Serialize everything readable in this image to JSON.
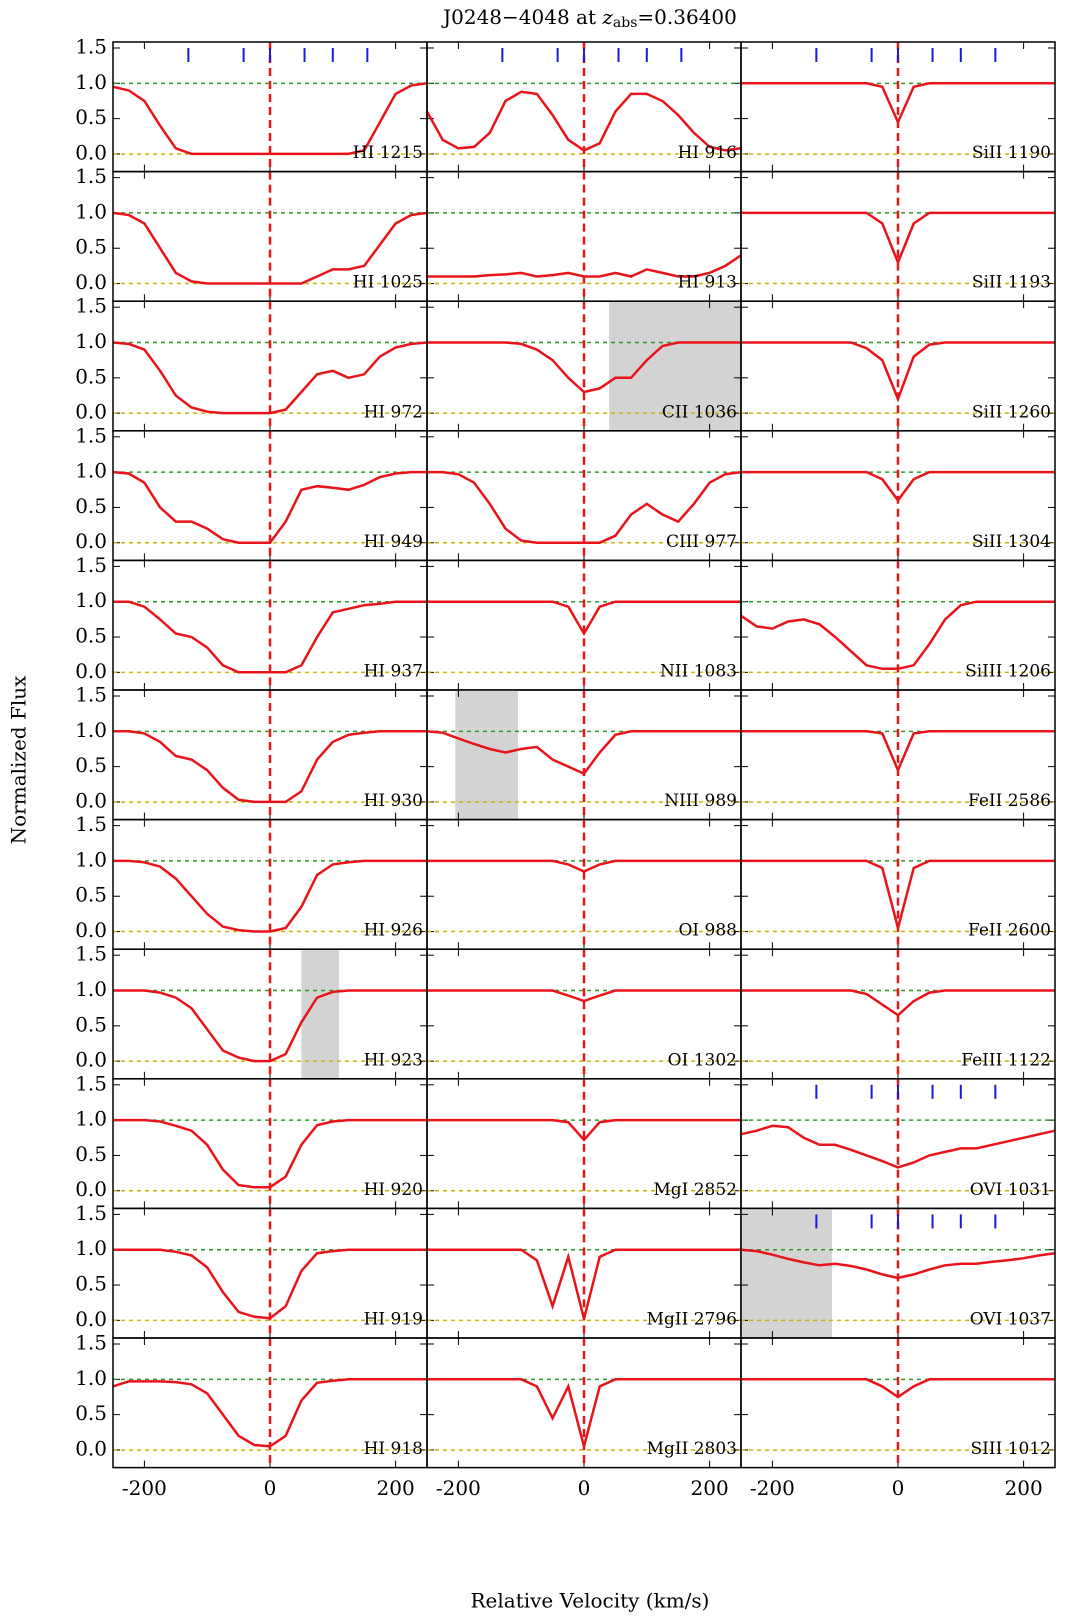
{
  "chart_data": {
    "type": "line",
    "title_prefix": "J0248−4048 at ",
    "title_var": "z",
    "title_sub": "abs",
    "title_value": "=0.36400",
    "xlabel": "Relative Velocity (km/s)",
    "ylabel": "Normalized Flux",
    "xlim": [
      -250,
      250
    ],
    "ylim": [
      -0.25,
      1.585
    ],
    "xticks": [
      -200,
      0,
      200
    ],
    "yticks": [
      {
        "value": 0,
        "label": "0.0"
      },
      {
        "value": 0.5,
        "label": "0.5"
      },
      {
        "value": 1,
        "label": "1.0"
      },
      {
        "value": 1.5,
        "label": "1.5"
      }
    ],
    "components": [
      -130,
      -42,
      0,
      55,
      100,
      155
    ],
    "model_color": "#e8141a",
    "x": [
      -250,
      -225,
      -200,
      -175,
      -150,
      -125,
      -100,
      -75,
      -50,
      -25,
      0,
      25,
      50,
      75,
      100,
      125,
      150,
      175,
      200,
      225,
      250
    ],
    "panels": [
      {
        "name": "HI 1215",
        "components": true,
        "values": [
          0.95,
          0.9,
          0.75,
          0.4,
          0.08,
          0,
          0,
          0,
          0,
          0,
          0,
          0,
          0,
          0,
          0,
          0,
          0.05,
          0.45,
          0.85,
          0.97,
          1
        ]
      },
      {
        "name": "HI 1025",
        "values": [
          1,
          0.97,
          0.85,
          0.5,
          0.15,
          0.03,
          0,
          0,
          0,
          0,
          0,
          0,
          0,
          0.1,
          0.2,
          0.2,
          0.25,
          0.55,
          0.85,
          0.97,
          1
        ]
      },
      {
        "name": "HI 972",
        "values": [
          1,
          0.98,
          0.9,
          0.6,
          0.25,
          0.08,
          0.02,
          0,
          0,
          0,
          0,
          0.05,
          0.3,
          0.55,
          0.6,
          0.5,
          0.55,
          0.8,
          0.93,
          0.98,
          1
        ]
      },
      {
        "name": "HI 949",
        "values": [
          1,
          0.98,
          0.85,
          0.5,
          0.3,
          0.3,
          0.2,
          0.05,
          0,
          0,
          0,
          0.3,
          0.75,
          0.8,
          0.78,
          0.75,
          0.82,
          0.93,
          0.98,
          1,
          1
        ]
      },
      {
        "name": "HI 937",
        "values": [
          1,
          1,
          0.93,
          0.75,
          0.55,
          0.5,
          0.35,
          0.1,
          0,
          0,
          0,
          0,
          0.1,
          0.5,
          0.85,
          0.9,
          0.95,
          0.97,
          1,
          1,
          1
        ]
      },
      {
        "name": "HI 930",
        "values": [
          1,
          1,
          0.97,
          0.85,
          0.65,
          0.6,
          0.45,
          0.2,
          0.03,
          0,
          0,
          0,
          0.15,
          0.6,
          0.85,
          0.95,
          0.98,
          1,
          1,
          1,
          1
        ]
      },
      {
        "name": "HI 926",
        "values": [
          1,
          1,
          0.98,
          0.92,
          0.75,
          0.5,
          0.25,
          0.07,
          0.02,
          0,
          0,
          0.05,
          0.35,
          0.8,
          0.95,
          0.98,
          1,
          1,
          1,
          1,
          1
        ]
      },
      {
        "name": "HI 923",
        "mask": [
          50,
          110
        ],
        "values": [
          1,
          1,
          1,
          0.97,
          0.9,
          0.75,
          0.45,
          0.15,
          0.05,
          0,
          0,
          0.1,
          0.55,
          0.9,
          0.98,
          1,
          1,
          1,
          1,
          1,
          1
        ]
      },
      {
        "name": "HI 920",
        "values": [
          1,
          1,
          1,
          0.98,
          0.92,
          0.85,
          0.65,
          0.3,
          0.08,
          0.05,
          0.05,
          0.2,
          0.65,
          0.93,
          0.98,
          1,
          1,
          1,
          1,
          1,
          1
        ]
      },
      {
        "name": "HI 919",
        "values": [
          1,
          1,
          1,
          1,
          0.97,
          0.92,
          0.75,
          0.4,
          0.12,
          0.05,
          0.03,
          0.2,
          0.7,
          0.95,
          0.98,
          1,
          1,
          1,
          1,
          1,
          1
        ]
      },
      {
        "name": "HI 918",
        "values": [
          0.9,
          0.97,
          0.97,
          0.97,
          0.96,
          0.93,
          0.8,
          0.5,
          0.2,
          0.07,
          0.05,
          0.2,
          0.7,
          0.95,
          0.98,
          1,
          1,
          1,
          1,
          1,
          1
        ]
      },
      {
        "name": "HI 916",
        "components": true,
        "values": [
          0.6,
          0.2,
          0.08,
          0.1,
          0.3,
          0.75,
          0.88,
          0.85,
          0.55,
          0.2,
          0.05,
          0.15,
          0.6,
          0.85,
          0.85,
          0.75,
          0.55,
          0.3,
          0.1,
          0.05,
          0.08
        ]
      },
      {
        "name": "HI 913",
        "values": [
          0.1,
          0.1,
          0.1,
          0.1,
          0.12,
          0.13,
          0.15,
          0.1,
          0.12,
          0.15,
          0.1,
          0.1,
          0.15,
          0.1,
          0.2,
          0.15,
          0.1,
          0.1,
          0.15,
          0.25,
          0.4
        ]
      },
      {
        "name": "CII 1036",
        "mask": [
          40,
          250
        ],
        "values": [
          1,
          1,
          1,
          1,
          1,
          1,
          0.98,
          0.9,
          0.75,
          0.5,
          0.3,
          0.35,
          0.5,
          0.5,
          0.75,
          0.95,
          1,
          1,
          1,
          1,
          1
        ]
      },
      {
        "name": "CIII 977",
        "values": [
          1,
          1,
          0.97,
          0.85,
          0.55,
          0.2,
          0.03,
          0,
          0,
          0,
          0,
          0,
          0.1,
          0.4,
          0.55,
          0.4,
          0.3,
          0.55,
          0.85,
          0.97,
          1
        ]
      },
      {
        "name": "NII 1083",
        "values": [
          1,
          1,
          1,
          1,
          1,
          1,
          1,
          1,
          1,
          0.93,
          0.55,
          0.93,
          1,
          1,
          1,
          1,
          1,
          1,
          1,
          1,
          1
        ]
      },
      {
        "name": "NIII 989",
        "mask": [
          -205,
          -105
        ],
        "values": [
          1,
          0.98,
          0.9,
          0.82,
          0.75,
          0.7,
          0.75,
          0.78,
          0.6,
          0.5,
          0.4,
          0.7,
          0.95,
          1,
          1,
          1,
          1,
          1,
          1,
          1,
          1
        ]
      },
      {
        "name": "OI 988",
        "values": [
          1,
          1,
          1,
          1,
          1,
          1,
          1,
          1,
          1,
          0.95,
          0.85,
          0.95,
          1,
          1,
          1,
          1,
          1,
          1,
          1,
          1,
          1
        ]
      },
      {
        "name": "OI 1302",
        "values": [
          1,
          1,
          1,
          1,
          1,
          1,
          1,
          1,
          1,
          0.93,
          0.85,
          0.93,
          1,
          1,
          1,
          1,
          1,
          1,
          1,
          1,
          1
        ]
      },
      {
        "name": "MgI 2852",
        "values": [
          1,
          1,
          1,
          1,
          1,
          1,
          1,
          1,
          1,
          0.97,
          0.72,
          0.97,
          1,
          1,
          1,
          1,
          1,
          1,
          1,
          1,
          1
        ]
      },
      {
        "name": "MgII 2796",
        "values": [
          1,
          1,
          1,
          1,
          1,
          1,
          1,
          0.85,
          0.2,
          0.9,
          0.02,
          0.9,
          1,
          1,
          1,
          1,
          1,
          1,
          1,
          1,
          1
        ]
      },
      {
        "name": "MgII 2803",
        "values": [
          1,
          1,
          1,
          1,
          1,
          1,
          1,
          0.9,
          0.45,
          0.9,
          0.05,
          0.9,
          1,
          1,
          1,
          1,
          1,
          1,
          1,
          1,
          1
        ]
      },
      {
        "name": "SiII 1190",
        "components": true,
        "values": [
          1,
          1,
          1,
          1,
          1,
          1,
          1,
          1,
          1,
          0.95,
          0.45,
          0.95,
          1,
          1,
          1,
          1,
          1,
          1,
          1,
          1,
          1
        ]
      },
      {
        "name": "SiII 1193",
        "values": [
          1,
          1,
          1,
          1,
          1,
          1,
          1,
          1,
          1,
          0.85,
          0.3,
          0.85,
          1,
          1,
          1,
          1,
          1,
          1,
          1,
          1,
          1
        ]
      },
      {
        "name": "SiII 1260",
        "values": [
          1,
          1,
          1,
          1,
          1,
          1,
          1,
          1,
          0.92,
          0.75,
          0.2,
          0.8,
          0.97,
          1,
          1,
          1,
          1,
          1,
          1,
          1,
          1
        ]
      },
      {
        "name": "SiII 1304",
        "values": [
          1,
          1,
          1,
          1,
          1,
          1,
          1,
          1,
          1,
          0.9,
          0.6,
          0.9,
          1,
          1,
          1,
          1,
          1,
          1,
          1,
          1,
          1
        ]
      },
      {
        "name": "SiIII 1206",
        "values": [
          0.8,
          0.65,
          0.62,
          0.72,
          0.75,
          0.68,
          0.5,
          0.3,
          0.1,
          0.05,
          0.05,
          0.1,
          0.4,
          0.75,
          0.95,
          1,
          1,
          1,
          1,
          1,
          1
        ]
      },
      {
        "name": "FeII 2586",
        "values": [
          1,
          1,
          1,
          1,
          1,
          1,
          1,
          1,
          1,
          0.97,
          0.45,
          0.97,
          1,
          1,
          1,
          1,
          1,
          1,
          1,
          1,
          1
        ]
      },
      {
        "name": "FeII 2600",
        "values": [
          1,
          1,
          1,
          1,
          1,
          1,
          1,
          1,
          1,
          0.9,
          0.05,
          0.9,
          1,
          1,
          1,
          1,
          1,
          1,
          1,
          1,
          1
        ]
      },
      {
        "name": "FeIII 1122",
        "values": [
          1,
          1,
          1,
          1,
          1,
          1,
          1,
          1,
          0.95,
          0.8,
          0.65,
          0.85,
          0.97,
          1,
          1,
          1,
          1,
          1,
          1,
          1,
          1
        ]
      },
      {
        "name": "OVI 1031",
        "components": true,
        "values": [
          0.8,
          0.85,
          0.92,
          0.9,
          0.75,
          0.65,
          0.65,
          0.58,
          0.5,
          0.42,
          0.33,
          0.4,
          0.5,
          0.55,
          0.6,
          0.6,
          0.65,
          0.7,
          0.75,
          0.8,
          0.85
        ]
      },
      {
        "name": "OVI 1037",
        "components": true,
        "mask": [
          -250,
          -105
        ],
        "values": [
          1,
          0.98,
          0.93,
          0.87,
          0.82,
          0.78,
          0.8,
          0.77,
          0.72,
          0.65,
          0.6,
          0.65,
          0.72,
          0.78,
          0.8,
          0.8,
          0.83,
          0.85,
          0.88,
          0.92,
          0.95
        ]
      },
      {
        "name": "SIII 1012",
        "values": [
          1,
          1,
          1,
          1,
          1,
          1,
          1,
          1,
          1,
          0.9,
          0.75,
          0.9,
          1,
          1,
          1,
          1,
          1,
          1,
          1,
          1,
          1
        ]
      }
    ]
  }
}
